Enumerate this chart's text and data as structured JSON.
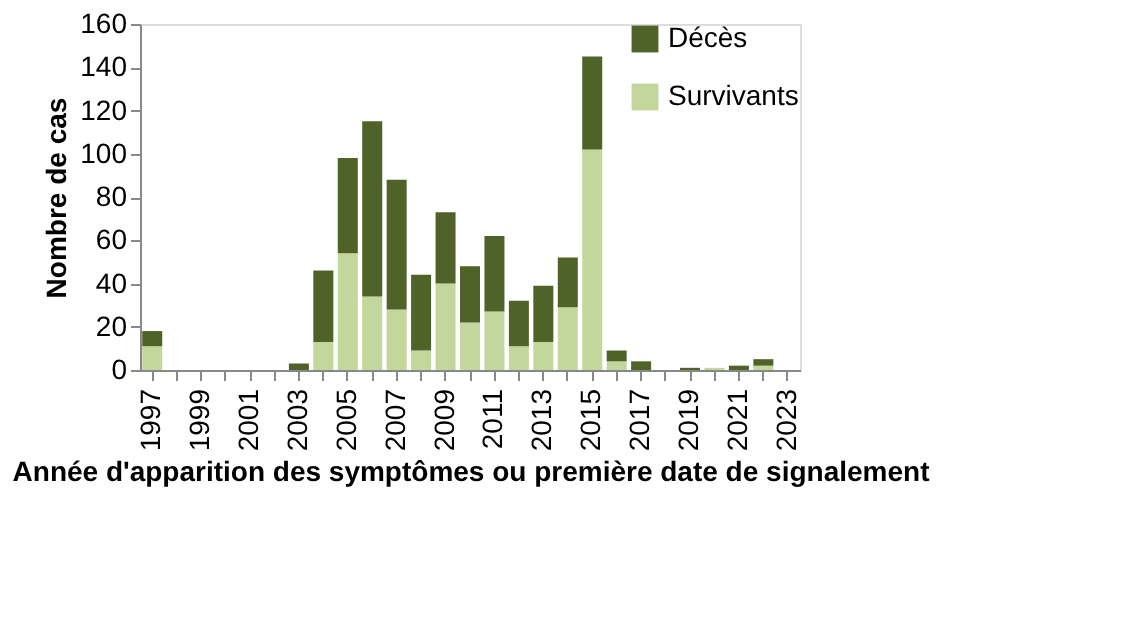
{
  "chart_data": {
    "type": "bar",
    "stacked": true,
    "xlabel": "Année d'apparition des symptômes ou première date de signalement",
    "ylabel": "Nombre de cas",
    "categories": [
      "1997",
      null,
      "1999",
      null,
      "2001",
      null,
      "2003",
      null,
      "2005",
      null,
      "2007",
      null,
      "2009",
      null,
      "2011",
      null,
      "2013",
      null,
      "2015",
      null,
      "2017",
      null,
      "2019",
      null,
      "2021",
      null,
      "2023"
    ],
    "series": [
      {
        "name": "Survivants",
        "color": "#c3d69b",
        "values": [
          11,
          0,
          0,
          0,
          0,
          0,
          0,
          13,
          54,
          34,
          28,
          9,
          40,
          22,
          27,
          11,
          13,
          29,
          102,
          4,
          0,
          0,
          0,
          1,
          0,
          2,
          0
        ]
      },
      {
        "name": "Décès",
        "color": "#4f6228",
        "values": [
          7,
          0,
          0,
          0,
          0,
          0,
          3,
          33,
          44,
          81,
          60,
          35,
          33,
          26,
          35,
          21,
          26,
          23,
          43,
          5,
          4,
          0,
          1,
          0,
          2,
          3,
          0
        ]
      }
    ],
    "ylim": [
      0,
      160
    ],
    "yticks": [
      0,
      20,
      40,
      60,
      80,
      100,
      120,
      140,
      160
    ],
    "grid": false,
    "legend": "top right"
  }
}
